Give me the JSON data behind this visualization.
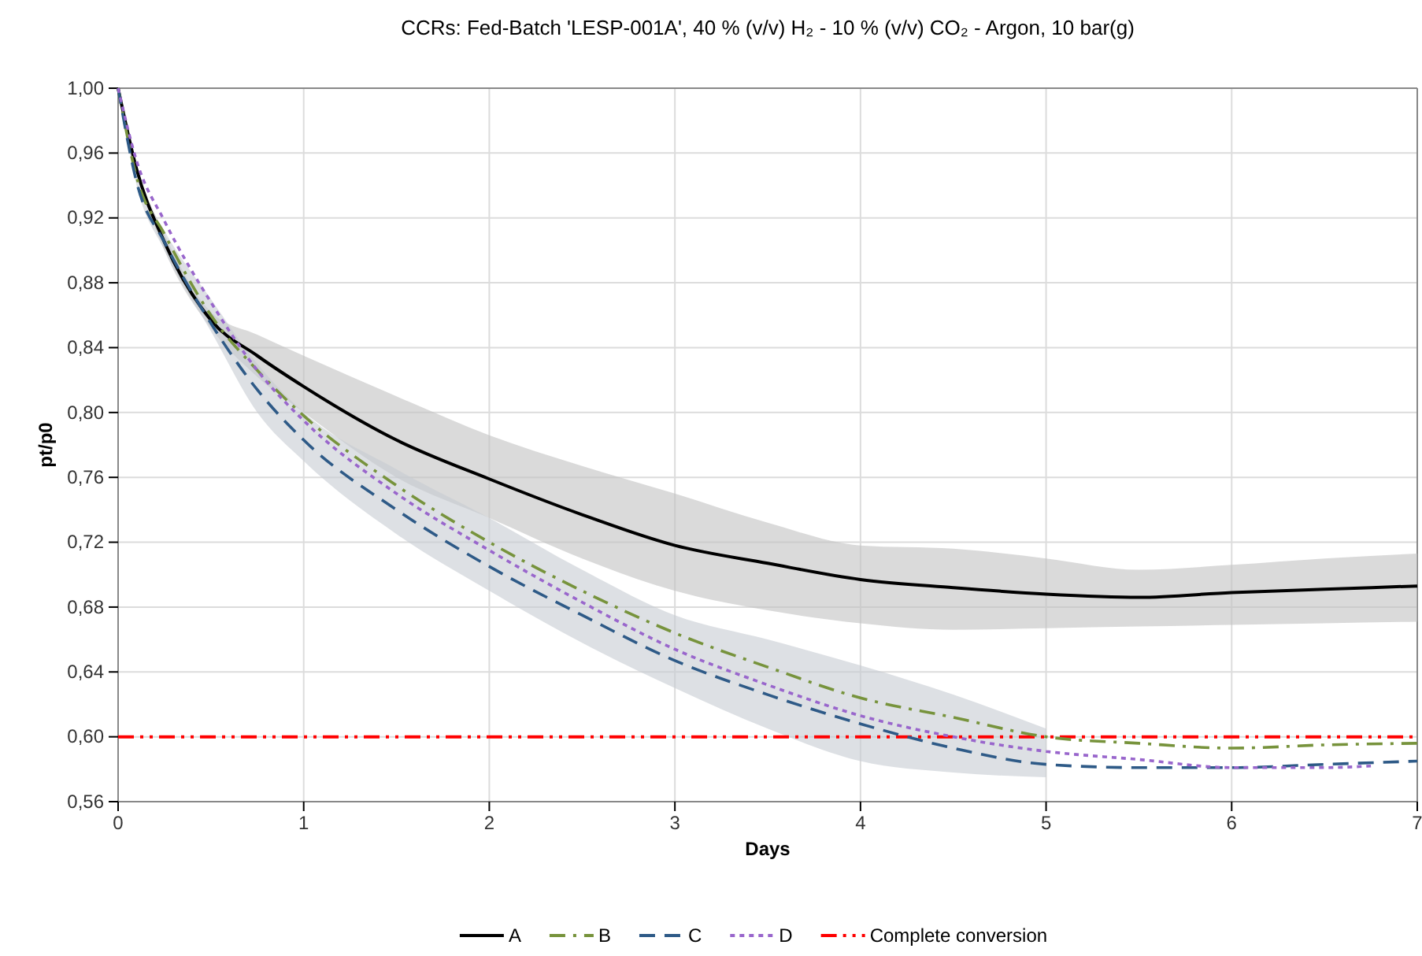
{
  "chart_data": {
    "type": "line",
    "title": "CCRs: Fed-Batch 'LESP-001A', 40 % (v/v) H₂ - 10 % (v/v) CO₂ - Argon, 10 bar(g)",
    "xlabel": "Days",
    "ylabel": "pt/p0",
    "x": [
      0,
      0.1,
      0.25,
      0.5,
      0.75,
      1,
      1.5,
      2,
      2.5,
      3,
      3.5,
      4,
      4.5,
      5,
      5.5,
      6,
      6.5,
      7
    ],
    "series": [
      {
        "name": "A",
        "color": "#000000",
        "line_style": "solid",
        "values": [
          1.0,
          0.95,
          0.905,
          0.857,
          0.835,
          0.816,
          0.783,
          0.759,
          0.737,
          0.718,
          0.707,
          0.697,
          0.692,
          0.688,
          0.686,
          0.689,
          0.691,
          0.693
        ],
        "lower": [
          1.0,
          0.948,
          0.9,
          0.852,
          0.822,
          0.8,
          0.76,
          0.735,
          0.71,
          0.69,
          0.678,
          0.67,
          0.666,
          0.667,
          0.668,
          0.669,
          0.67,
          0.671
        ],
        "upper": [
          1.0,
          0.952,
          0.91,
          0.862,
          0.848,
          0.835,
          0.81,
          0.786,
          0.767,
          0.75,
          0.732,
          0.718,
          0.716,
          0.71,
          0.703,
          0.706,
          0.71,
          0.713
        ]
      },
      {
        "name": "B",
        "color": "#77933c",
        "line_style": "dashdot",
        "values": [
          1.0,
          0.945,
          0.91,
          0.86,
          0.826,
          0.798,
          0.755,
          0.72,
          0.69,
          0.664,
          0.643,
          0.624,
          0.612,
          0.6,
          0.596,
          0.593,
          0.595,
          0.596
        ]
      },
      {
        "name": "C",
        "color": "#2e5a87",
        "line_style": "dashed",
        "values": [
          1.0,
          0.942,
          0.905,
          0.855,
          0.814,
          0.783,
          0.74,
          0.705,
          0.675,
          0.647,
          0.626,
          0.608,
          0.593,
          0.583,
          0.581,
          0.581,
          0.583,
          0.585
        ],
        "lower": [
          1.0,
          0.94,
          0.9,
          0.85,
          0.8,
          0.77,
          0.725,
          0.69,
          0.658,
          0.63,
          0.605,
          0.585,
          0.578,
          0.575,
          null,
          null,
          null,
          null
        ],
        "upper": [
          1.0,
          0.946,
          0.912,
          0.87,
          0.83,
          0.8,
          0.765,
          0.735,
          0.703,
          0.675,
          0.66,
          0.644,
          0.626,
          0.605,
          null,
          null,
          null,
          null
        ]
      },
      {
        "name": "D",
        "color": "#9966cc",
        "line_style": "dotted",
        "x": [
          0,
          0.1,
          0.25,
          0.5,
          0.75,
          1,
          1.5,
          2,
          2.5,
          3,
          3.5,
          4,
          4.5,
          5,
          5.5,
          6,
          6.5,
          6.75
        ],
        "values": [
          1.0,
          0.955,
          0.918,
          0.868,
          0.826,
          0.795,
          0.75,
          0.715,
          0.683,
          0.654,
          0.632,
          0.613,
          0.6,
          0.591,
          0.586,
          0.581,
          0.581,
          0.582
        ]
      }
    ],
    "ref_lines": [
      {
        "axis": "y",
        "value": 0.6,
        "label": "Complete conversion",
        "color": "#ff0000",
        "line_style": "dashdotdot"
      }
    ],
    "xlim": [
      0,
      7
    ],
    "xticks": [
      0,
      1,
      2,
      3,
      4,
      5,
      6,
      7
    ],
    "ylim": [
      0.56,
      1.0
    ],
    "yticks": [
      {
        "value": 0.56,
        "label": "0,56"
      },
      {
        "value": 0.6,
        "label": "0,60"
      },
      {
        "value": 0.64,
        "label": "0,64"
      },
      {
        "value": 0.68,
        "label": "0,68"
      },
      {
        "value": 0.72,
        "label": "0,72"
      },
      {
        "value": 0.76,
        "label": "0,76"
      },
      {
        "value": 0.8,
        "label": "0,80"
      },
      {
        "value": 0.84,
        "label": "0,84"
      },
      {
        "value": 0.88,
        "label": "0,88"
      },
      {
        "value": 0.92,
        "label": "0,92"
      },
      {
        "value": 0.96,
        "label": "0,96"
      },
      {
        "value": 1.0,
        "label": "1,00"
      }
    ],
    "grid": true,
    "legend": "bottom",
    "marker": "none"
  }
}
